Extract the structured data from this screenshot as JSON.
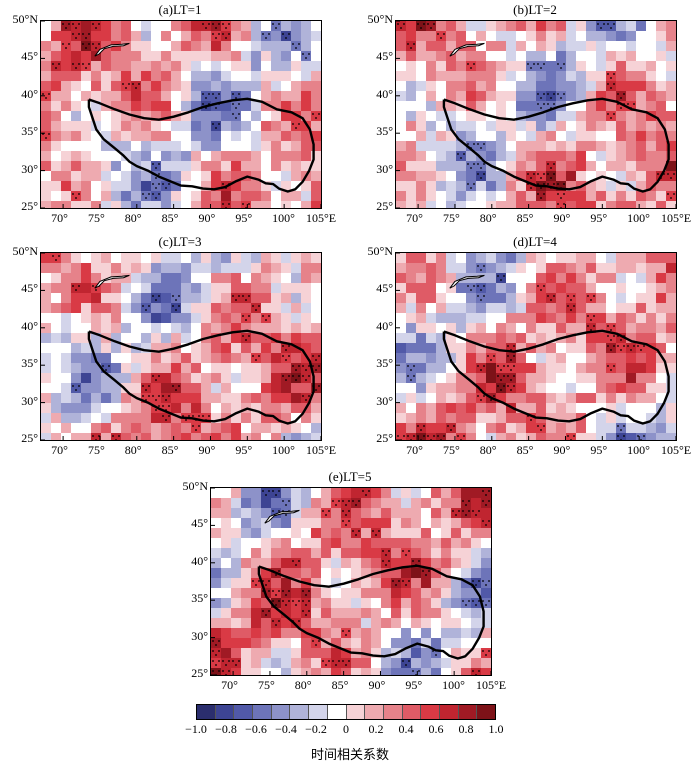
{
  "panels": [
    {
      "title": "(a)LT=1"
    },
    {
      "title": "(b)LT=2"
    },
    {
      "title": "(c)LT=3"
    },
    {
      "title": "(d)LT=4"
    },
    {
      "title": "(e)LT=5"
    }
  ],
  "axes": {
    "lat_labels": [
      "50°N",
      "45°",
      "40°",
      "35°",
      "30°",
      "25°"
    ],
    "lon_labels": [
      "70°",
      "75°",
      "80°",
      "85°",
      "90°",
      "95°",
      "100°",
      "105°E"
    ]
  },
  "colorbar": {
    "labels": [
      "−1.0",
      "−0.8",
      "−0.6",
      "−0.4",
      "−0.2",
      "0",
      "0.2",
      "0.4",
      "0.6",
      "0.8",
      "1.0"
    ],
    "colors": [
      "#2b2e6e",
      "#3d4493",
      "#5159a8",
      "#6d74b9",
      "#8d92c9",
      "#b0b3d9",
      "#d3d4ea",
      "#ffffff",
      "#f6d2d6",
      "#eeaab0",
      "#e6828a",
      "#df5b66",
      "#d93a45",
      "#c02530",
      "#a01a24",
      "#7d1218"
    ],
    "title": "时间相关系数"
  },
  "map_data": {
    "lon_range": [
      67,
      105
    ],
    "lat_range": [
      25,
      50
    ],
    "plateau_outline": [
      [
        73.5,
        39.5
      ],
      [
        75,
        39
      ],
      [
        77,
        38.2
      ],
      [
        79,
        37.5
      ],
      [
        81,
        37
      ],
      [
        83,
        36.8
      ],
      [
        85,
        37.2
      ],
      [
        87,
        37.8
      ],
      [
        89,
        38.5
      ],
      [
        91,
        39
      ],
      [
        93,
        39.4
      ],
      [
        95,
        39.6
      ],
      [
        97,
        39.2
      ],
      [
        99,
        38.2
      ],
      [
        101,
        37.8
      ],
      [
        102.5,
        37
      ],
      [
        103.5,
        35.5
      ],
      [
        104,
        33.5
      ],
      [
        104,
        31.5
      ],
      [
        103.4,
        30
      ],
      [
        102.5,
        28.5
      ],
      [
        101.5,
        27.5
      ],
      [
        100.5,
        27.2
      ],
      [
        99.3,
        27.6
      ],
      [
        98.5,
        28.2
      ],
      [
        97.5,
        28.3
      ],
      [
        96.5,
        28.8
      ],
      [
        95,
        29.2
      ],
      [
        93.5,
        28.6
      ],
      [
        92,
        27.8
      ],
      [
        90.5,
        27.5
      ],
      [
        89,
        27.6
      ],
      [
        87.5,
        27.9
      ],
      [
        86,
        28
      ],
      [
        84.5,
        28.6
      ],
      [
        83,
        29.2
      ],
      [
        81.5,
        30
      ],
      [
        80,
        30.6
      ],
      [
        79,
        31.2
      ],
      [
        78.2,
        32
      ],
      [
        77,
        33
      ],
      [
        75.5,
        34.2
      ],
      [
        74.5,
        35.5
      ],
      [
        74,
        37
      ],
      [
        73.5,
        38.5
      ],
      [
        73.5,
        39.5
      ]
    ],
    "lake_outline": [
      [
        74.3,
        45.3
      ],
      [
        75,
        46.2
      ],
      [
        76.5,
        46.8
      ],
      [
        78,
        46.9
      ],
      [
        79,
        47
      ],
      [
        78.2,
        46.7
      ],
      [
        76.8,
        46.6
      ],
      [
        75.6,
        46.3
      ],
      [
        74.9,
        45.6
      ],
      [
        74.3,
        45.3
      ]
    ]
  }
}
